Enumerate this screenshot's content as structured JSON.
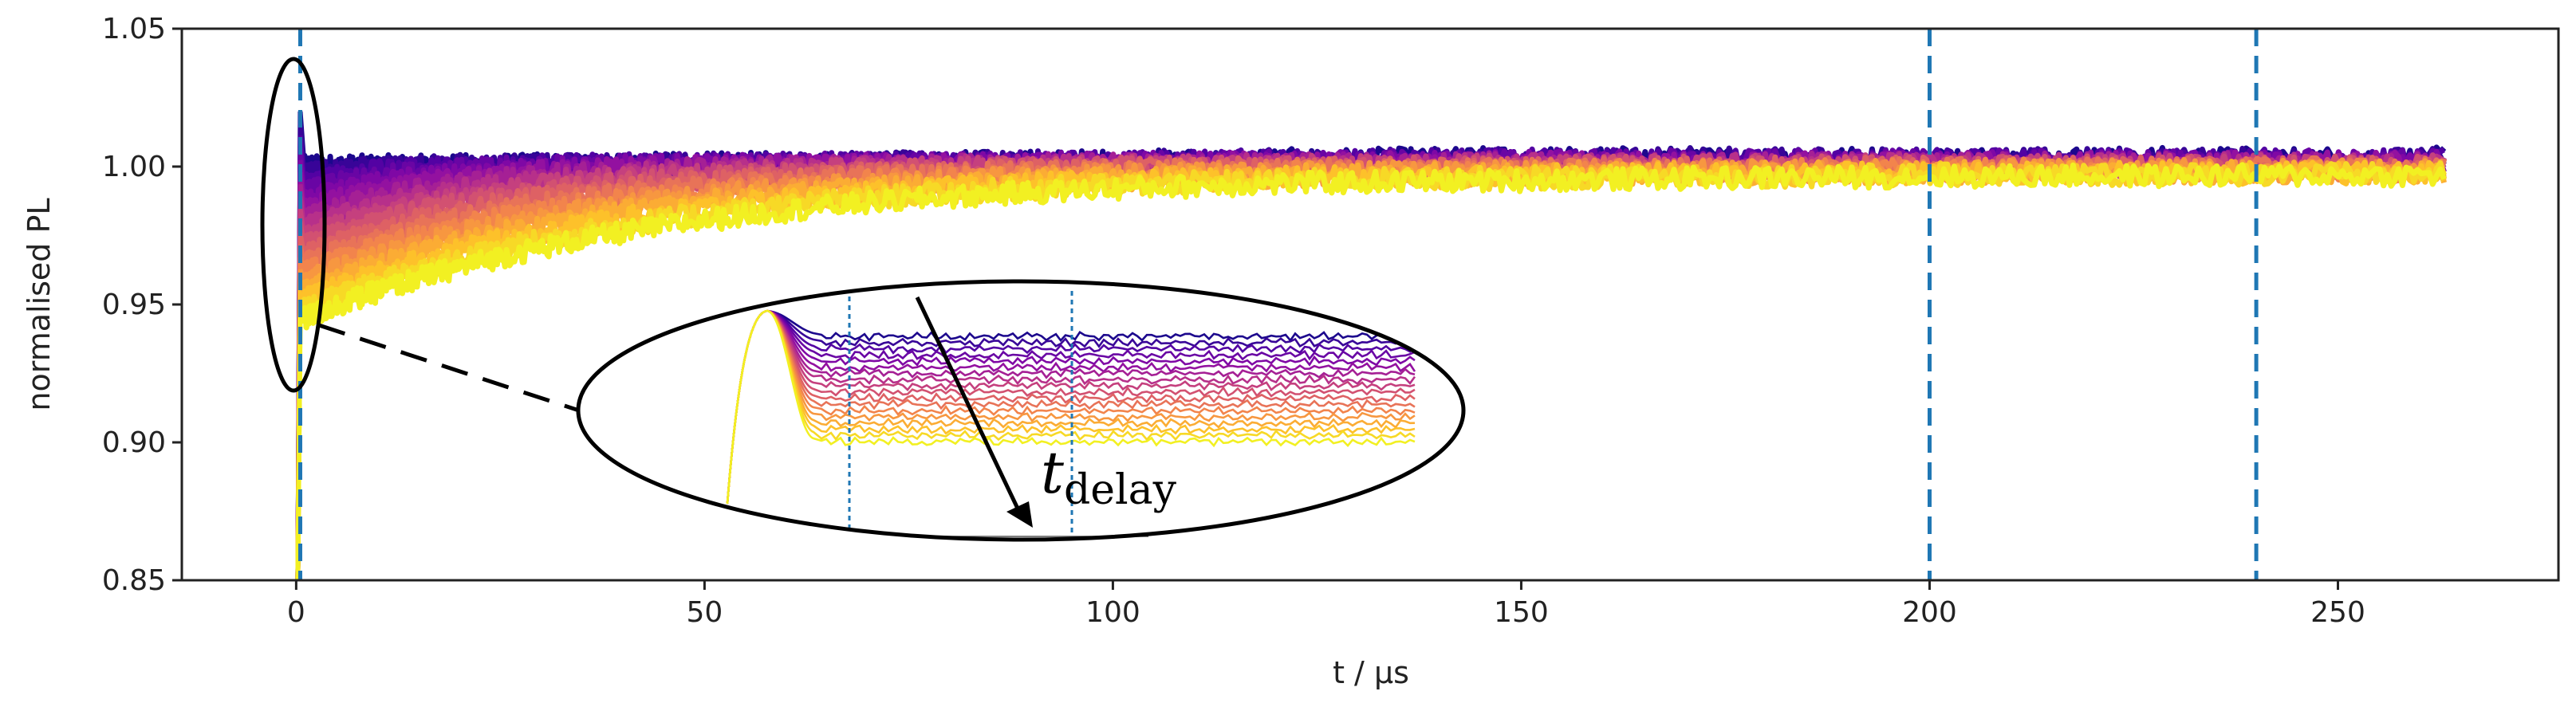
{
  "chart_data": {
    "type": "line",
    "title": "",
    "xlabel": "t / μs",
    "ylabel": "normalised PL",
    "xlim": [
      -14,
      277
    ],
    "ylim": [
      0.85,
      1.05
    ],
    "xticks": [
      0,
      50,
      100,
      150,
      200,
      250
    ],
    "yticks": [
      0.85,
      0.9,
      0.95,
      1.0,
      1.05
    ],
    "xtick_labels": [
      "0",
      "50",
      "100",
      "150",
      "200",
      "250"
    ],
    "ytick_labels": [
      "0.85",
      "0.90",
      "0.95",
      "1.00",
      "1.05"
    ],
    "grid": false,
    "colormap": "plasma",
    "series_count": 18,
    "series_model": {
      "description": "normalised PL recovery traces for increasing delay time; colour runs dark purple to yellow",
      "t_end": 263,
      "first_trace": {
        "initial": 1.0,
        "steady": 1.0
      },
      "last_trace": {
        "initial": 0.945,
        "steady": 1.0
      },
      "recovery_time_constant_min": 3,
      "recovery_time_constant_max": 45,
      "noise_band": 0.004
    },
    "reference_lines": [
      {
        "x": 0.5,
        "color": "#1f77b4",
        "style": "dashed"
      },
      {
        "x": 200,
        "color": "#1f77b4",
        "style": "dashed"
      },
      {
        "x": 240,
        "color": "#1f77b4",
        "style": "dashed"
      }
    ],
    "annotations": [
      {
        "type": "zoom-inset",
        "source_region": "early-time ellipse around t = 0",
        "label": "t",
        "label_subscript": "delay",
        "arrow": "increasing delay"
      }
    ]
  }
}
